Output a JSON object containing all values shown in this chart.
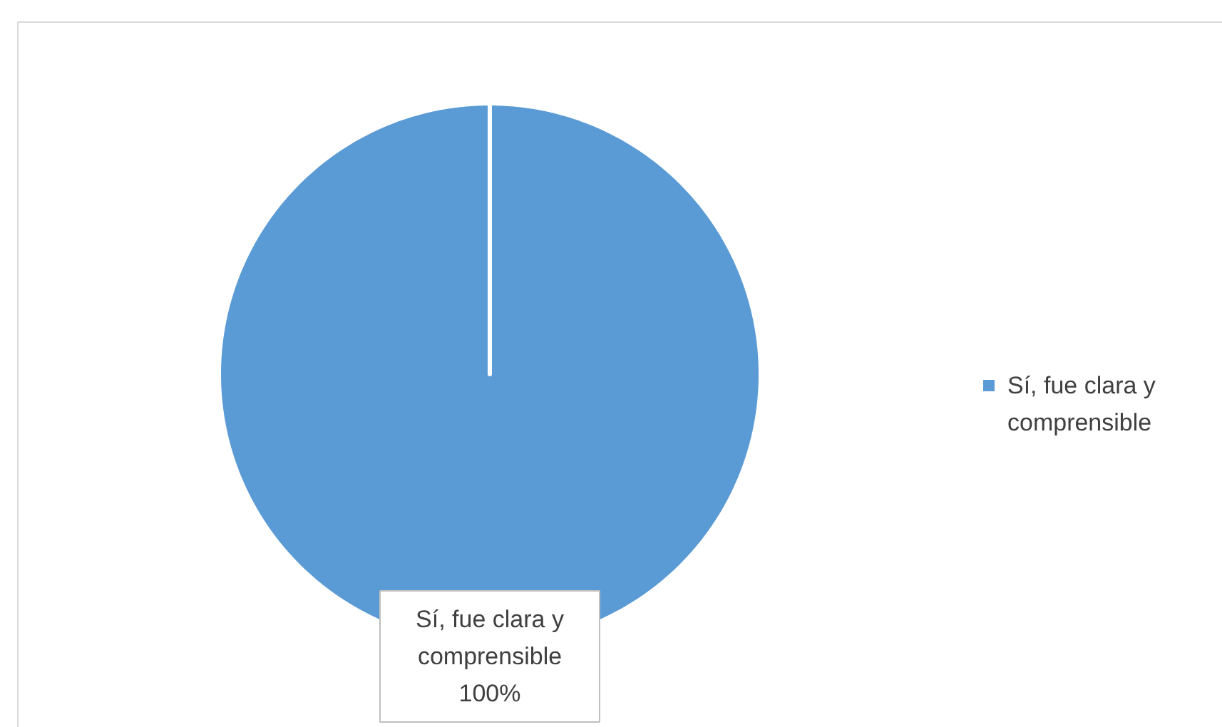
{
  "chart_data": {
    "type": "pie",
    "categories": [
      "Sí, fue clara y comprensible"
    ],
    "values": [
      100
    ],
    "colors": [
      "#5b9bd5"
    ],
    "value_labels": [
      "100%"
    ],
    "legend": "right"
  }
}
